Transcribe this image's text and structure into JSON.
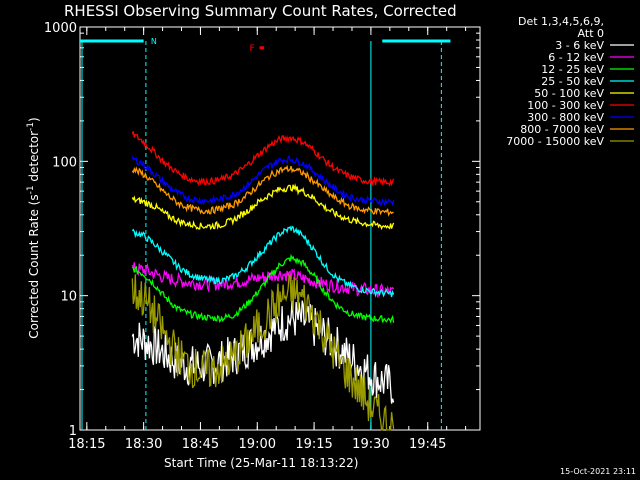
{
  "chart_data": {
    "type": "line",
    "title": "RHESSI Observing Summary Count Rates, Corrected",
    "xlabel": "Start Time (25-Mar-11 18:13:22)",
    "ylabel": "Corrected Count Rate (s",
    "ylabel_sup1": "-1",
    "ylabel_mid": " detector",
    "ylabel_sup2": "-1",
    "ylabel_end": ")",
    "yscale": "log",
    "ylim": [
      1,
      1000
    ],
    "xlim": [
      18.22,
      19.98
    ],
    "x_ticks": [
      {
        "label": "18:15",
        "value": 18.25
      },
      {
        "label": "18:30",
        "value": 18.5
      },
      {
        "label": "18:45",
        "value": 18.75
      },
      {
        "label": "19:00",
        "value": 19.0
      },
      {
        "label": "19:15",
        "value": 19.25
      },
      {
        "label": "19:30",
        "value": 19.5
      },
      {
        "label": "19:45",
        "value": 19.75
      }
    ],
    "y_ticks": [
      {
        "label": "1",
        "value": 1
      },
      {
        "label": "10",
        "value": 10
      },
      {
        "label": "100",
        "value": 100
      },
      {
        "label": "1000",
        "value": 1000
      }
    ],
    "x": [
      18.45,
      18.5,
      18.55,
      18.6,
      18.65,
      18.7,
      18.75,
      18.8,
      18.85,
      18.9,
      18.95,
      19.0,
      19.05,
      19.1,
      19.15,
      19.2,
      19.25,
      19.3,
      19.35,
      19.4,
      19.45,
      19.5,
      19.55,
      19.6
    ],
    "series": [
      {
        "name": "3 - 6 keV",
        "color": "#ffffff",
        "values": [
          5.0,
          4.6,
          4.2,
          3.6,
          3.2,
          3.0,
          3.0,
          3.1,
          3.3,
          3.6,
          4.1,
          4.6,
          5.3,
          6.2,
          6.8,
          6.5,
          5.8,
          5.0,
          4.2,
          3.5,
          3.0,
          2.6,
          2.3,
          2.1
        ]
      },
      {
        "name": "6 - 12 keV",
        "color": "#ff00ff",
        "values": [
          16,
          15.5,
          14.5,
          13.5,
          13.0,
          12.5,
          12.3,
          12.2,
          12.3,
          12.6,
          13.0,
          13.5,
          14.0,
          14.5,
          14.2,
          13.5,
          12.8,
          12.2,
          11.8,
          11.5,
          11.2,
          11.0,
          10.8,
          10.6
        ]
      },
      {
        "name": "12 - 25 keV",
        "color": "#00ff00",
        "values": [
          16,
          14.5,
          12.0,
          9.5,
          8.0,
          7.3,
          7.0,
          6.8,
          6.8,
          7.2,
          8.5,
          10.5,
          13.5,
          17.0,
          19.0,
          17.5,
          14.0,
          10.5,
          8.5,
          7.5,
          7.0,
          6.8,
          6.7,
          6.6
        ]
      },
      {
        "name": "25 - 50 keV",
        "color": "#00ffff",
        "values": [
          30,
          28,
          24,
          20,
          16.5,
          14.5,
          13.5,
          13.0,
          13.0,
          14.0,
          16.0,
          19.5,
          24.0,
          29.0,
          32.0,
          28.0,
          22.0,
          16.5,
          13.5,
          12.0,
          11.2,
          10.8,
          10.5,
          10.3
        ]
      },
      {
        "name": "50 - 100 keV",
        "color": "#ffff00",
        "values": [
          52,
          50,
          46,
          40,
          36,
          34,
          33,
          33,
          34,
          37,
          42,
          49,
          56,
          62,
          64,
          60,
          53,
          45,
          40,
          37,
          35,
          34,
          33,
          33
        ]
      },
      {
        "name": "100 - 300 keV",
        "color": "#ff0000",
        "values": [
          160,
          140,
          115,
          95,
          82,
          74,
          71,
          71,
          74,
          80,
          92,
          110,
          130,
          146,
          150,
          140,
          120,
          100,
          86,
          78,
          73,
          71,
          70,
          70
        ]
      },
      {
        "name": "300 - 800 keV",
        "color": "#0000ff",
        "values": [
          105,
          95,
          80,
          67,
          58,
          53,
          51,
          51,
          53,
          57,
          65,
          78,
          92,
          102,
          104,
          97,
          84,
          71,
          61,
          55,
          52,
          51,
          50,
          50
        ]
      },
      {
        "name": "800 - 7000 keV",
        "color": "#ff9900",
        "values": [
          88,
          80,
          68,
          57,
          49,
          45,
          43,
          43,
          45,
          48,
          55,
          65,
          77,
          86,
          88,
          82,
          71,
          60,
          52,
          47,
          44,
          43,
          42,
          42
        ]
      },
      {
        "name": "7000 - 15000 keV",
        "color": "#999900",
        "values": [
          11,
          9.5,
          7.0,
          4.8,
          3.6,
          3.0,
          2.8,
          2.8,
          3.0,
          3.5,
          4.4,
          5.6,
          7.2,
          9.3,
          10.5,
          9.5,
          7.3,
          5.0,
          3.5,
          2.6,
          2.0,
          1.5,
          1.2,
          1.05
        ]
      }
    ],
    "legend_header": [
      "Det 1,3,4,5,6,9,",
      "Att 0"
    ],
    "legend_placement": "outside-right",
    "grid": false,
    "annotations": {
      "night_marker": "N",
      "flare_marker": "F",
      "night_bar_color": "#00ffff",
      "flare_color": "#ff0000",
      "night_bars": [
        [
          18.22,
          18.5
        ],
        [
          19.55,
          19.85
        ]
      ],
      "night_dashes": [
        18.51,
        19.81
      ],
      "saa_line": 19.5,
      "flare_bar": [
        19.01,
        19.03
      ],
      "flare_level": 700
    },
    "timestamp": "15-Oct-2021 23:11"
  }
}
